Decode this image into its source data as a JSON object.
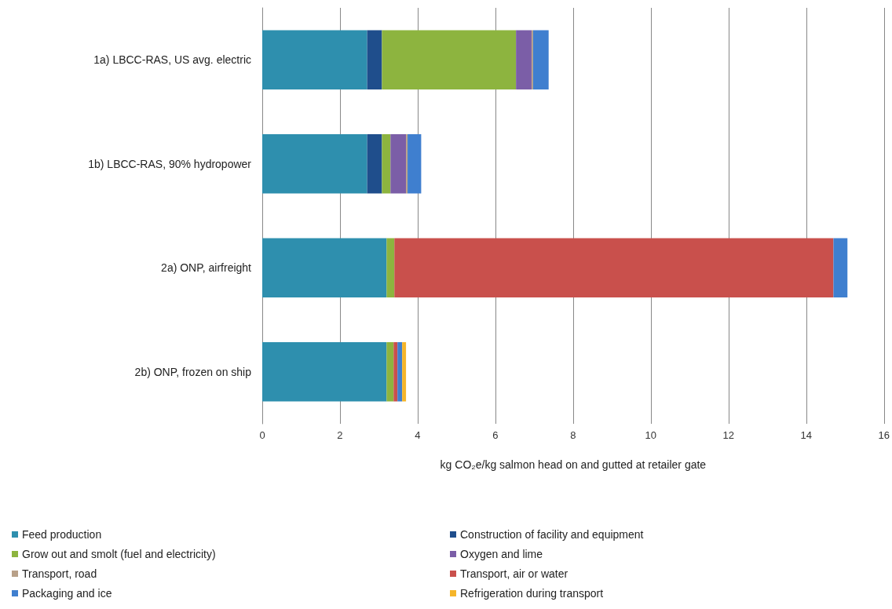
{
  "chart_data": {
    "type": "bar",
    "orientation": "horizontal",
    "stacked": true,
    "xlabel": "kg CO₂e/kg salmon head on and gutted at retailer gate",
    "categories": [
      "1a) LBCC-RAS, US avg. electric",
      "1b) LBCC-RAS, 90% hydropower",
      "2a) ONP, airfreight",
      "2b) ONP, frozen on ship"
    ],
    "series": [
      {
        "name": "Feed production",
        "color": "#2e8fae",
        "values": [
          2.7,
          2.7,
          3.2,
          3.2
        ]
      },
      {
        "name": "Construction of facility and equipment",
        "color": "#1f4e8c",
        "values": [
          0.38,
          0.38,
          0,
          0
        ]
      },
      {
        "name": "Grow out and smolt (fuel and electricity)",
        "color": "#8db43f",
        "values": [
          3.45,
          0.22,
          0.2,
          0.18
        ]
      },
      {
        "name": "Oxygen and lime",
        "color": "#7b5ea7",
        "values": [
          0.4,
          0.4,
          0,
          0
        ]
      },
      {
        "name": "Transport, road",
        "color": "#b8a088",
        "values": [
          0.04,
          0.04,
          0,
          0
        ]
      },
      {
        "name": "Transport, air or water",
        "color": "#c9504c",
        "values": [
          0,
          0,
          11.3,
          0.1
        ]
      },
      {
        "name": "Packaging and ice",
        "color": "#3f7fcf",
        "values": [
          0.4,
          0.35,
          0.36,
          0.12
        ]
      },
      {
        "name": "Refrigeration during transport",
        "color": "#f5b52a",
        "values": [
          0,
          0,
          0,
          0.1
        ]
      }
    ],
    "xlim": [
      0,
      16
    ],
    "xticks": [
      0,
      2,
      4,
      6,
      8,
      10,
      12,
      14,
      16
    ],
    "grid": "x",
    "legend": "bottom"
  }
}
